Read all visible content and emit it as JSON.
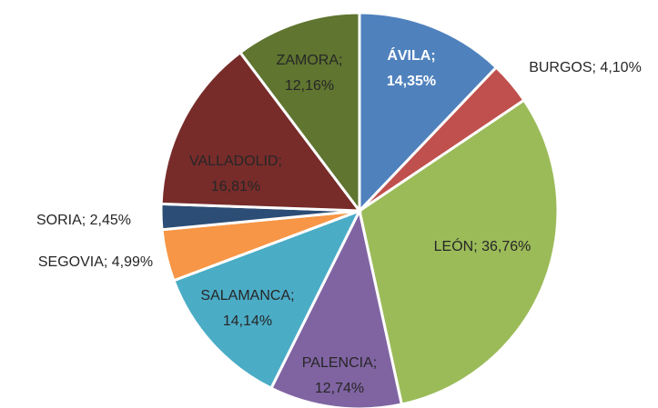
{
  "chart_data": {
    "type": "pie",
    "values": [
      14.35,
      4.1,
      36.76,
      12.74,
      14.14,
      4.99,
      2.45,
      16.81,
      12.16
    ],
    "value_labels": [
      "ÁVILA; 14,35%",
      "BURGOS; 4,10%",
      "LEÓN; 36,76%",
      "PALENCIA; 12,74%",
      "SALAMANCA; 14,14%",
      "SEGOVIA; 4,99%",
      "SORIA; 2,45%",
      "VALLADOLID; 16,81%",
      "ZAMORA; 12,16%"
    ],
    "colors": [
      "#4f81bd",
      "#c0504d",
      "#9bbb59",
      "#8064a2",
      "#4bacc6",
      "#f79646",
      "#2c4d75",
      "#772c2a",
      "#5f7530"
    ]
  }
}
